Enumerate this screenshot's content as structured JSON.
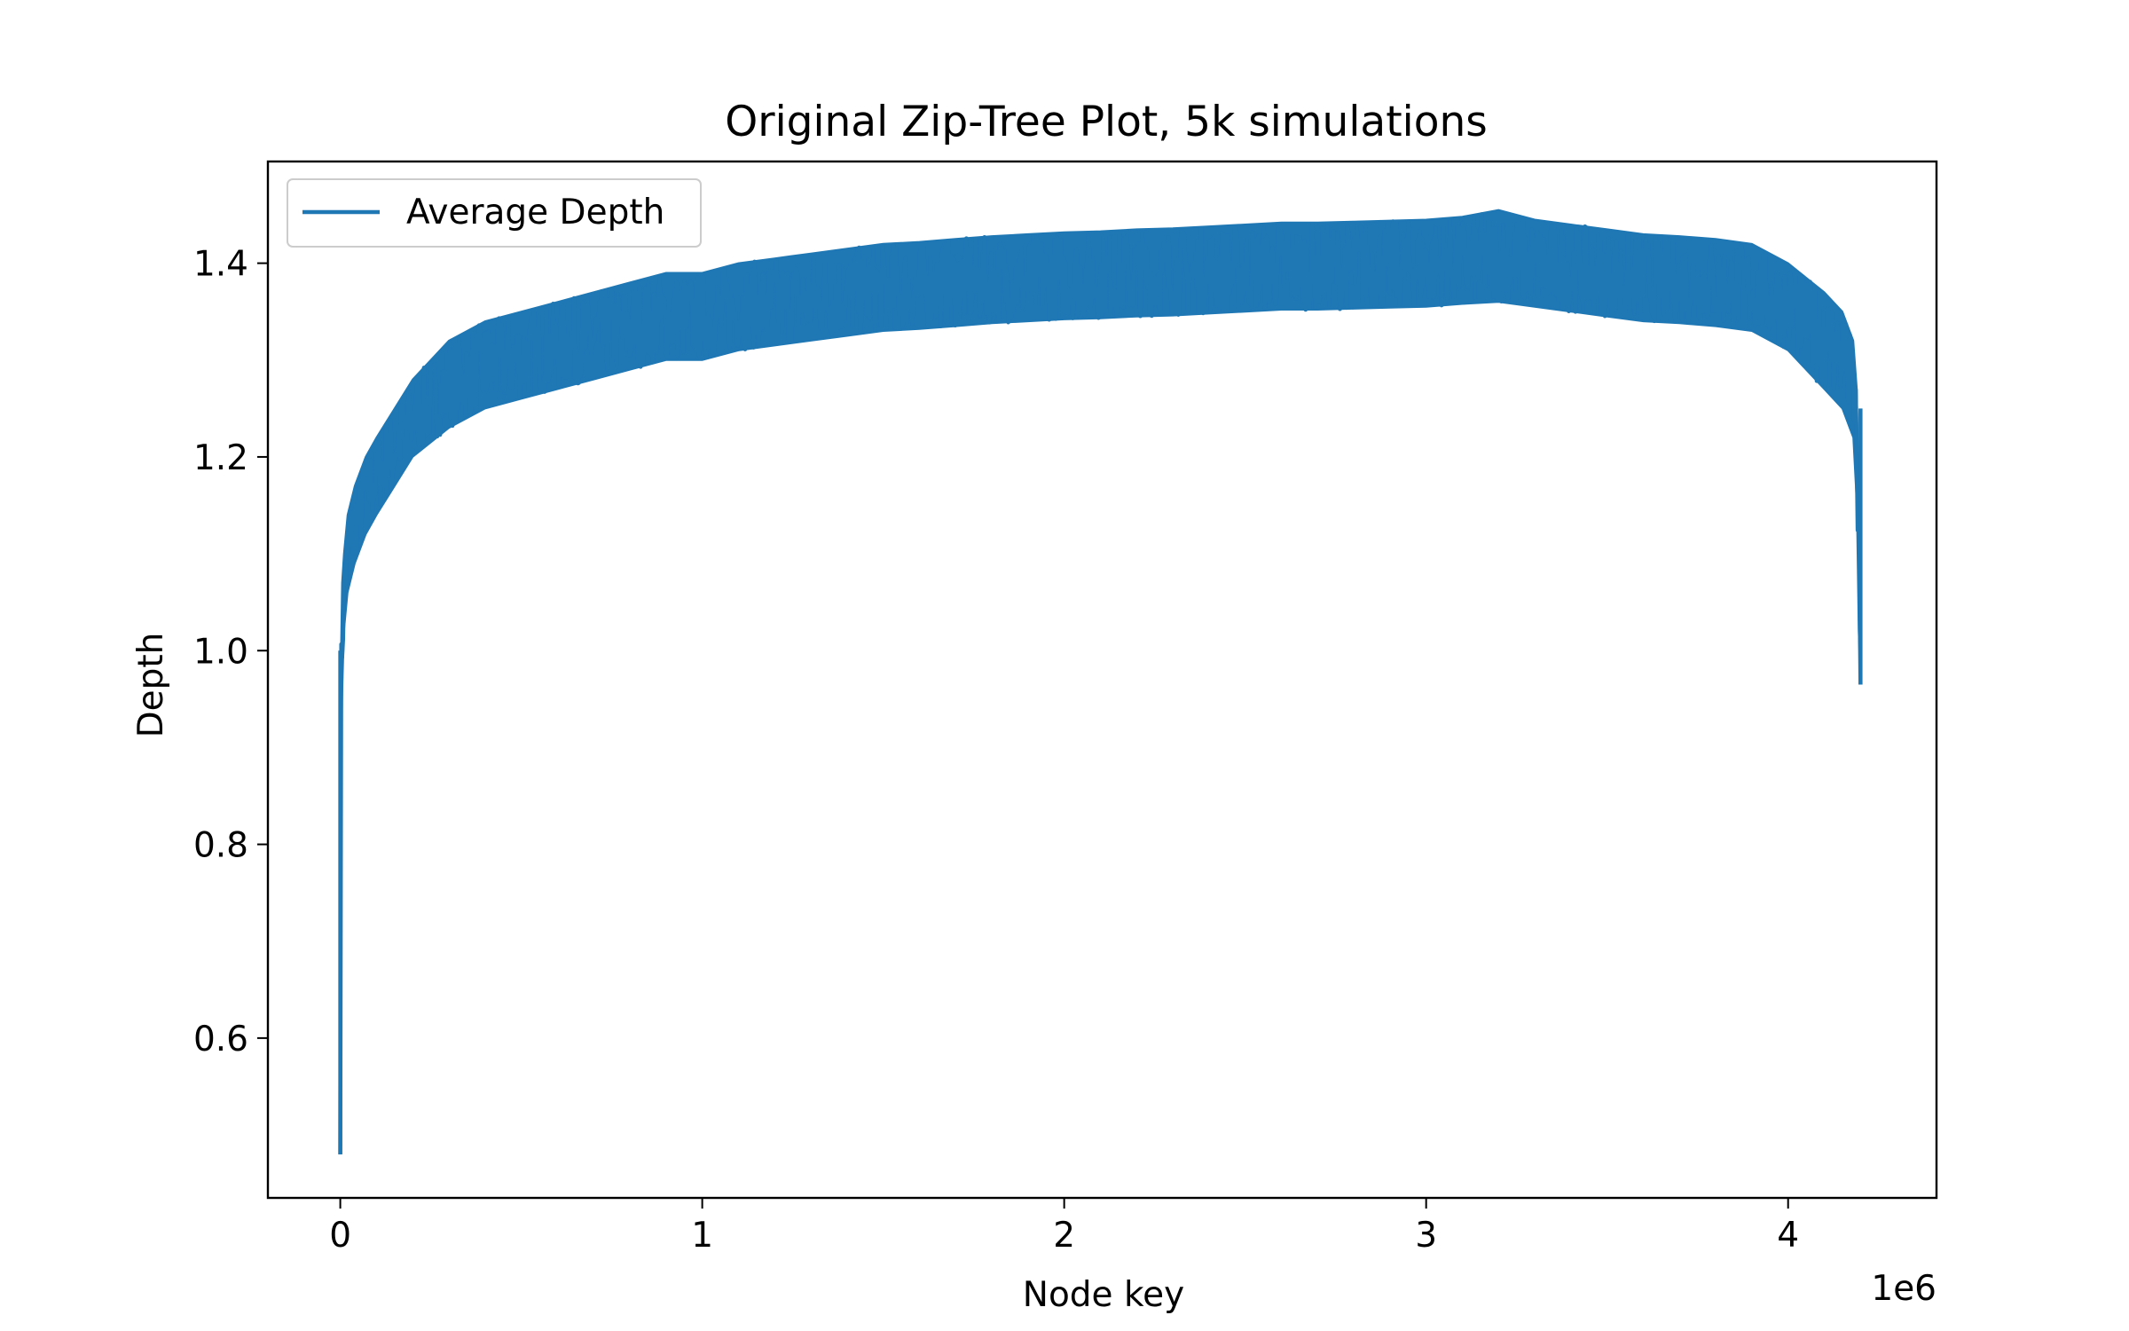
{
  "chart_data": {
    "type": "line",
    "title": "Original Zip-Tree Plot, 5k simulations",
    "xlabel": "Node key",
    "ylabel": "Depth",
    "x_offset_label": "1e6",
    "xlim": [
      -200000,
      4410000
    ],
    "ylim": [
      0.435,
      1.505
    ],
    "xticks": [
      0,
      1000000,
      2000000,
      3000000,
      4000000
    ],
    "xtick_labels": [
      "0",
      "1",
      "2",
      "3",
      "4"
    ],
    "yticks": [
      0.6,
      0.8,
      1.0,
      1.2,
      1.4
    ],
    "ytick_labels": [
      "0.6",
      "0.8",
      "1.0",
      "1.2",
      "1.4"
    ],
    "grid": false,
    "legend_position": "upper-left",
    "color": "#1f77b4",
    "series": [
      {
        "name": "Average Depth",
        "x": [
          0,
          2000,
          5000,
          10000,
          20000,
          40000,
          70000,
          100000,
          150000,
          200000,
          300000,
          400000,
          500000,
          600000,
          700000,
          800000,
          900000,
          1000000,
          1100000,
          1200000,
          1300000,
          1400000,
          1500000,
          1600000,
          1700000,
          1800000,
          1900000,
          2000000,
          2100000,
          2200000,
          2300000,
          2400000,
          2500000,
          2600000,
          2700000,
          2800000,
          2900000,
          3000000,
          3100000,
          3200000,
          3300000,
          3400000,
          3500000,
          3600000,
          3700000,
          3800000,
          3900000,
          4000000,
          4050000,
          4100000,
          4150000,
          4180000,
          4190000,
          4195000,
          4200000
        ],
        "y_mean": [
          0.48,
          0.95,
          1.02,
          1.06,
          1.1,
          1.13,
          1.16,
          1.18,
          1.21,
          1.24,
          1.27,
          1.29,
          1.3,
          1.31,
          1.32,
          1.33,
          1.34,
          1.34,
          1.35,
          1.355,
          1.36,
          1.365,
          1.37,
          1.372,
          1.375,
          1.378,
          1.38,
          1.382,
          1.383,
          1.385,
          1.386,
          1.388,
          1.39,
          1.392,
          1.392,
          1.393,
          1.394,
          1.395,
          1.398,
          1.4,
          1.395,
          1.39,
          1.385,
          1.38,
          1.378,
          1.375,
          1.37,
          1.36,
          1.345,
          1.33,
          1.31,
          1.28,
          1.22,
          1.1,
          0.965
        ],
        "y_min": [
          0.48,
          0.82,
          0.95,
          1.02,
          1.06,
          1.09,
          1.12,
          1.14,
          1.17,
          1.2,
          1.23,
          1.25,
          1.26,
          1.27,
          1.28,
          1.29,
          1.3,
          1.3,
          1.31,
          1.315,
          1.32,
          1.325,
          1.33,
          1.332,
          1.335,
          1.338,
          1.34,
          1.342,
          1.343,
          1.345,
          1.346,
          1.348,
          1.35,
          1.352,
          1.352,
          1.353,
          1.354,
          1.355,
          1.358,
          1.36,
          1.355,
          1.35,
          1.345,
          1.34,
          1.338,
          1.335,
          1.33,
          1.31,
          1.29,
          1.27,
          1.25,
          1.22,
          1.15,
          1.02,
          0.965
        ],
        "y_max": [
          0.6,
          1.0,
          1.07,
          1.1,
          1.14,
          1.17,
          1.2,
          1.22,
          1.25,
          1.28,
          1.32,
          1.34,
          1.35,
          1.36,
          1.37,
          1.38,
          1.39,
          1.39,
          1.4,
          1.405,
          1.41,
          1.415,
          1.42,
          1.422,
          1.425,
          1.428,
          1.43,
          1.432,
          1.433,
          1.435,
          1.436,
          1.438,
          1.44,
          1.442,
          1.442,
          1.443,
          1.444,
          1.445,
          1.448,
          1.455,
          1.445,
          1.44,
          1.435,
          1.43,
          1.428,
          1.425,
          1.42,
          1.4,
          1.385,
          1.37,
          1.35,
          1.32,
          1.27,
          1.16,
          0.97
        ]
      }
    ]
  }
}
